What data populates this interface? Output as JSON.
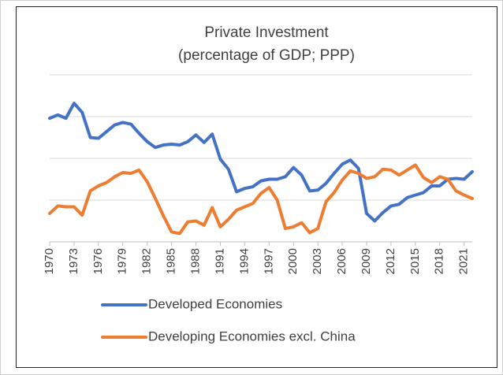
{
  "chart_data": {
    "type": "line",
    "title": "Private Investment",
    "subtitle": "(percentage of GDP; PPP)",
    "x": [
      1970,
      1971,
      1972,
      1973,
      1974,
      1975,
      1976,
      1977,
      1978,
      1979,
      1980,
      1981,
      1982,
      1983,
      1984,
      1985,
      1986,
      1987,
      1988,
      1989,
      1990,
      1991,
      1992,
      1993,
      1994,
      1995,
      1996,
      1997,
      1998,
      1999,
      2000,
      2001,
      2002,
      2003,
      2004,
      2005,
      2006,
      2007,
      2008,
      2009,
      2010,
      2011,
      2012,
      2013,
      2014,
      2015,
      2016,
      2017,
      2018,
      2019,
      2020,
      2021,
      2022
    ],
    "series": [
      {
        "name": "Developed Economies",
        "color": "#4472c4",
        "values": [
          24.8,
          25.2,
          24.8,
          26.6,
          25.5,
          22.5,
          22.4,
          23.2,
          24.0,
          24.3,
          24.1,
          23.0,
          22.0,
          21.3,
          21.6,
          21.7,
          21.6,
          22.0,
          22.8,
          21.9,
          22.9,
          19.9,
          18.7,
          16.0,
          16.4,
          16.6,
          17.3,
          17.5,
          17.5,
          17.8,
          18.9,
          18.0,
          16.1,
          16.2,
          17.0,
          18.2,
          19.3,
          19.8,
          18.8,
          13.4,
          12.5,
          13.5,
          14.3,
          14.5,
          15.3,
          15.6,
          15.9,
          16.7,
          16.7,
          17.5,
          17.6,
          17.5,
          18.4
        ]
      },
      {
        "name": "Developing Economies excl. China",
        "color": "#ed7d31",
        "values": [
          13.4,
          14.3,
          14.2,
          14.2,
          13.2,
          16.1,
          16.7,
          17.1,
          17.8,
          18.3,
          18.2,
          18.6,
          17.2,
          15.2,
          13.1,
          11.2,
          11.0,
          12.4,
          12.5,
          12.0,
          14.1,
          11.8,
          12.7,
          13.8,
          14.2,
          14.6,
          15.8,
          16.5,
          15.0,
          11.6,
          11.8,
          12.3,
          11.1,
          11.6,
          14.8,
          15.9,
          17.4,
          18.5,
          18.2,
          17.6,
          17.8,
          18.7,
          18.6,
          18.0,
          18.6,
          19.2,
          17.7,
          17.1,
          17.8,
          17.5,
          16.1,
          15.6,
          15.2
        ]
      }
    ],
    "xlim": [
      1970,
      2022
    ],
    "xticks": [
      1970,
      1973,
      1976,
      1979,
      1982,
      1985,
      1988,
      1991,
      1994,
      1997,
      2000,
      2003,
      2006,
      2009,
      2012,
      2015,
      2018,
      2021
    ],
    "ylim": [
      10,
      30
    ],
    "yticks": [
      10,
      15,
      20,
      25,
      30
    ],
    "grid": true,
    "legend": "bottom"
  }
}
